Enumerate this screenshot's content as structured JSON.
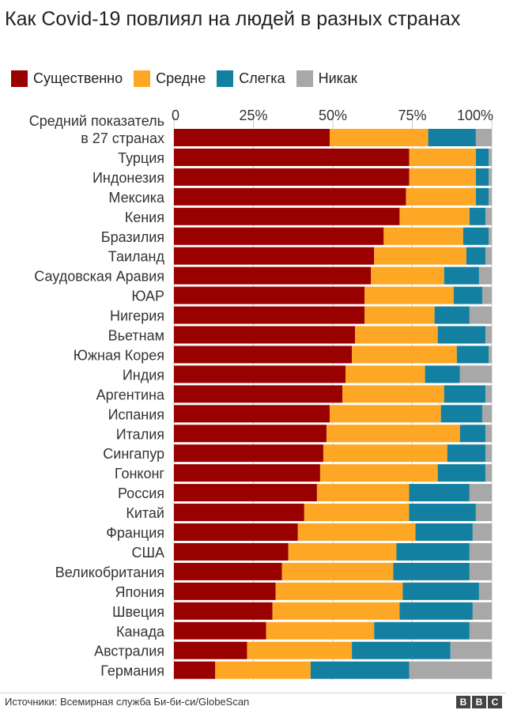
{
  "title": "Как Covid-19 повлиял на людей в разных странах",
  "legend": [
    {
      "label": "Существенно",
      "color": "#990000"
    },
    {
      "label": "Средне",
      "color": "#FDA724"
    },
    {
      "label": "Слегка",
      "color": "#1380A1"
    },
    {
      "label": "Никак",
      "color": "#A8A8A8"
    }
  ],
  "source": "Источники: Всемирная служба Би-би-си/GlobeScan",
  "logo_letters": [
    "B",
    "B",
    "C"
  ],
  "chart_data": {
    "type": "bar",
    "orientation": "horizontal",
    "stacked": true,
    "xlim": [
      0,
      100
    ],
    "xticks": [
      "0",
      "25%",
      "50%",
      "75%",
      "100%"
    ],
    "categories": [
      "Средний показатель в 27 странах",
      "Турция",
      "Индонезия",
      "Мексика",
      "Кения",
      "Бразилия",
      "Таиланд",
      "Саудовская Аравия",
      "ЮАР",
      "Нигерия",
      "Вьетнам",
      "Южная Корея",
      "Индия",
      "Аргентина",
      "Испания",
      "Италия",
      "Сингапур",
      "Гонконг",
      "Россия",
      "Китай",
      "Франция",
      "США",
      "Великобритания",
      "Япония",
      "Швеция",
      "Канада",
      "Австралия",
      "Германия"
    ],
    "series": [
      {
        "name": "Существенно",
        "color": "#990000",
        "values": [
          49,
          74,
          74,
          73,
          71,
          66,
          63,
          62,
          60,
          60,
          57,
          56,
          54,
          53,
          49,
          48,
          47,
          46,
          45,
          41,
          39,
          36,
          34,
          32,
          31,
          29,
          23,
          13
        ]
      },
      {
        "name": "Средне",
        "color": "#FDA724",
        "values": [
          31,
          21,
          21,
          22,
          22,
          25,
          29,
          23,
          28,
          22,
          26,
          33,
          25,
          32,
          35,
          42,
          39,
          37,
          29,
          33,
          37,
          34,
          35,
          40,
          40,
          34,
          33,
          30
        ]
      },
      {
        "name": "Слегка",
        "color": "#1380A1",
        "values": [
          15,
          4,
          4,
          4,
          5,
          8,
          6,
          11,
          9,
          11,
          15,
          10,
          11,
          13,
          13,
          8,
          12,
          15,
          19,
          21,
          18,
          23,
          24,
          24,
          23,
          30,
          31,
          31
        ]
      },
      {
        "name": "Никак",
        "color": "#A8A8A8",
        "values": [
          5,
          1,
          1,
          1,
          2,
          1,
          2,
          4,
          3,
          7,
          2,
          1,
          10,
          2,
          3,
          2,
          2,
          2,
          7,
          5,
          6,
          7,
          7,
          4,
          6,
          7,
          13,
          26
        ]
      }
    ]
  }
}
